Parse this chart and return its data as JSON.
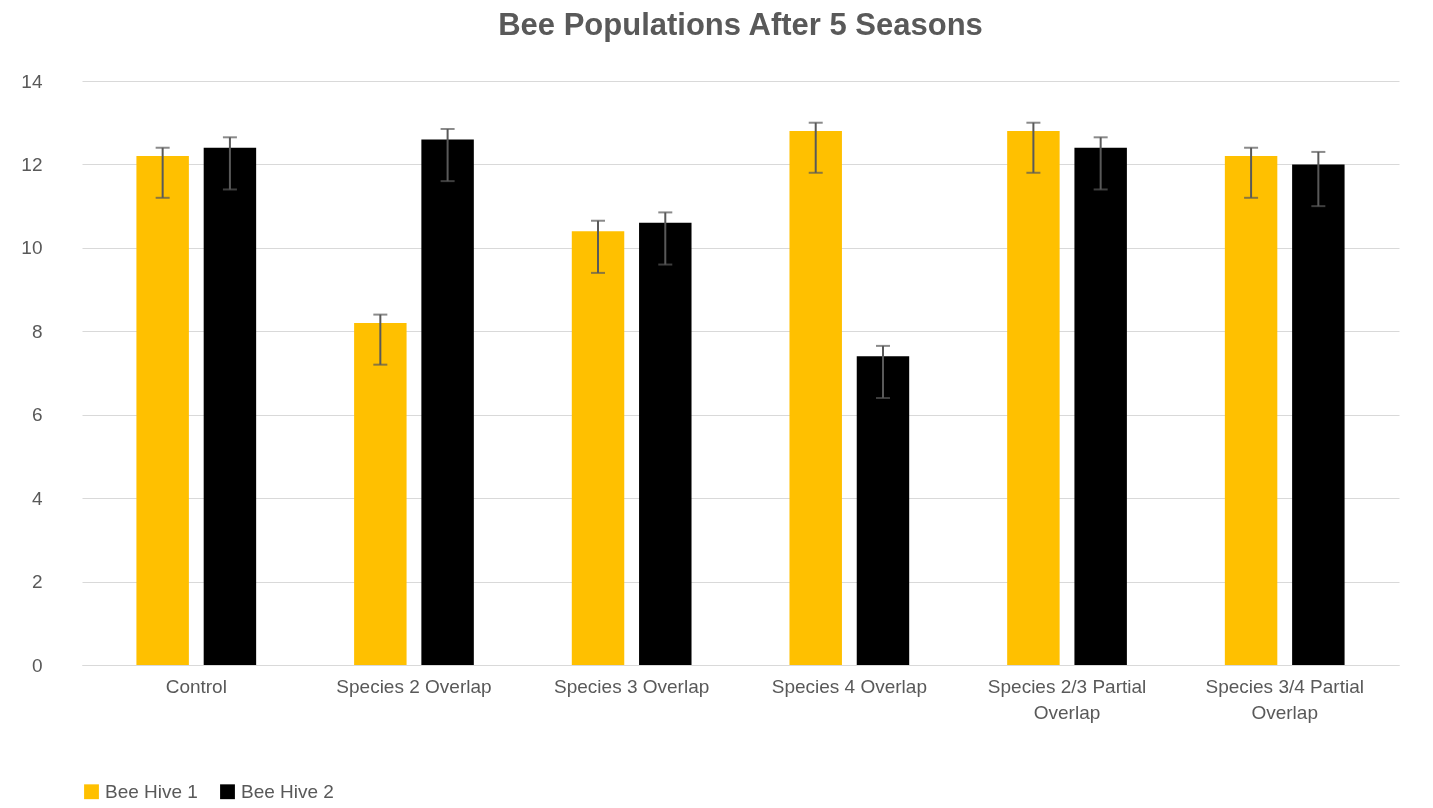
{
  "chart_data": {
    "type": "bar",
    "title": "Bee Populations After 5 Seasons",
    "categories": [
      "Control",
      "Species 2 Overlap",
      "Species 3 Overlap",
      "Species 4 Overlap",
      "Species 2/3 Partial Overlap",
      "Species 3/4 Partial Overlap"
    ],
    "series": [
      {
        "name": "Bee Hive 1",
        "color": "#ffc000",
        "values": [
          12.2,
          8.2,
          10.4,
          12.8,
          12.8,
          12.2
        ],
        "errors": [
          [
            11.2,
            12.4
          ],
          [
            7.2,
            8.4
          ],
          [
            9.4,
            10.65
          ],
          [
            11.8,
            13
          ],
          [
            11.8,
            13
          ],
          [
            11.2,
            12.4
          ]
        ]
      },
      {
        "name": "Bee Hive 2",
        "color": "#000000",
        "values": [
          12.4,
          12.6,
          10.6,
          7.4,
          12.4,
          12
        ],
        "errors": [
          [
            11.4,
            12.65
          ],
          [
            11.6,
            12.85
          ],
          [
            9.6,
            10.85
          ],
          [
            6.4,
            7.65
          ],
          [
            11.4,
            12.65
          ],
          [
            11,
            12.3
          ]
        ]
      }
    ],
    "ylim": [
      0,
      14
    ],
    "yticks": [
      0,
      2,
      4,
      6,
      8,
      10,
      12,
      14
    ],
    "grid": "y",
    "legend": "bottom"
  }
}
